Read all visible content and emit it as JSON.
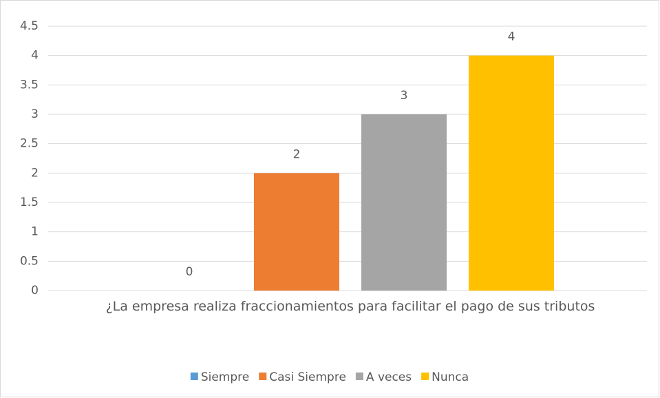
{
  "chart_data": {
    "type": "bar",
    "categories": [
      "¿La empresa realiza fraccionamientos para facilitar el pago de sus tributos"
    ],
    "series": [
      {
        "name": "Siempre",
        "color": "#5b9bd5",
        "values": [
          0
        ]
      },
      {
        "name": "Casi Siempre",
        "color": "#ed7d31",
        "values": [
          2
        ]
      },
      {
        "name": "A veces",
        "color": "#a5a5a5",
        "values": [
          3
        ]
      },
      {
        "name": "Nunca",
        "color": "#ffc000",
        "values": [
          4
        ]
      }
    ],
    "ylim": [
      0,
      4.5
    ],
    "yticks": [
      0,
      0.5,
      1,
      1.5,
      2,
      2.5,
      3,
      3.5,
      4,
      4.5
    ],
    "grid": true,
    "legend": "bottom"
  }
}
